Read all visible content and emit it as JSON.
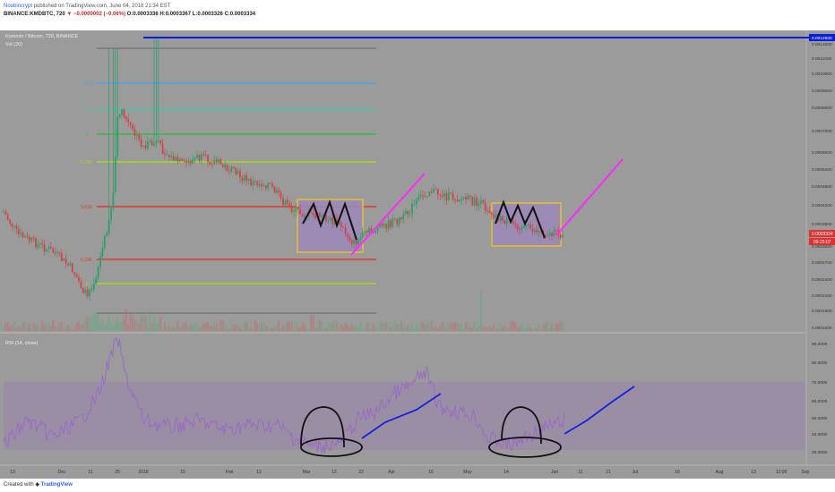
{
  "header": {
    "author": "Noobincrypt",
    "published": "published on TradingView.com, June 04, 2018 21:34 EST",
    "symbol_line": "BINANCE:KMDBTC, 720",
    "change": "▼ −0.0000002 (−0.06%)",
    "o": "O:0.0003336",
    "h": "H:0.0003367",
    "l": "L:0.0003326",
    "c": "C:0.0003334"
  },
  "footer": {
    "created_with": "Created with",
    "brand": "TradingView"
  },
  "colors": {
    "background": "#9b9b9b",
    "rsi_band": "#9a8aa8",
    "fib_gray": "#7a7a7a",
    "fib_blue": "#4aa6e0",
    "fib_teal": "#3fc8b0",
    "fib_green": "#3cb840",
    "fib_yellowgreen": "#a8d82a",
    "fib_red": "#e03a30",
    "top_line": "#0a1ee0",
    "magenta": "#ff28ff",
    "box": "#e8c030",
    "box_fill": "#9c88b8",
    "price_badge": "#e03030",
    "rsi_line": "#9a66c8"
  },
  "chart_data": [
    {
      "type": "candlestick",
      "title": "Komodo / Bitcoin, 720, BINANCE",
      "indicator": "Vol (20)",
      "y_axis_labels": [
        "0.0012500",
        "0.0012000",
        "0.0011000",
        "0.0010000",
        "0.0009000",
        "0.0008000",
        "0.0007000",
        "0.0006000",
        "0.0005400",
        "0.0004800",
        "0.0004200",
        "0.0003800",
        "0.0003334",
        "0.0003000",
        "0.0002700",
        "0.0002400",
        "0.0002150",
        "0.0001900",
        "0.0001600"
      ],
      "last_price": "0.0003334",
      "countdown": "09:25:07",
      "x_axis_labels": [
        "13",
        "Dec",
        "11",
        "25",
        "2018",
        "15",
        "Feb",
        "12",
        "Mar",
        "12",
        "22",
        "Apr",
        "16",
        "May",
        "14",
        "Jun",
        "11",
        "21",
        "Jul",
        "16",
        "Aug",
        "13",
        "12:00",
        "Sep"
      ],
      "fib_labels": [
        "1.618",
        "1.272",
        "1",
        "0.786",
        "0.618",
        "0.236",
        "0"
      ],
      "horizontal_line_value": 0.00125,
      "patterns": "two shaded boxes marking double-top shapes, magenta breakout lines"
    },
    {
      "type": "line",
      "title": "RSI (14, close)",
      "y_axis_labels": [
        "90.0000",
        "80.0000",
        "70.0000",
        "60.0000",
        "50.0000",
        "40.0000",
        "30.0000"
      ],
      "band": [
        30,
        70
      ]
    }
  ]
}
